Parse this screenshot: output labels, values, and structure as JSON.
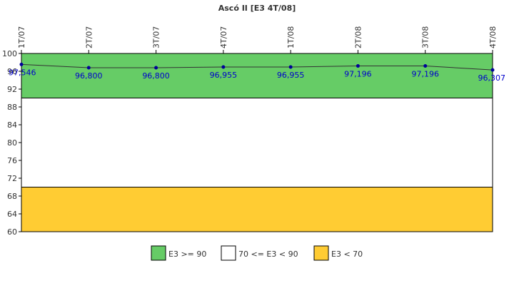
{
  "chart_data": {
    "type": "line",
    "title": "Ascó II [E3 4T/08]",
    "categories": [
      "1T/07",
      "2T/07",
      "3T/07",
      "4T/07",
      "1T/08",
      "2T/08",
      "3T/08",
      "4T/08"
    ],
    "values": [
      97.546,
      96.8,
      96.8,
      96.955,
      96.955,
      97.196,
      97.196,
      96.307
    ],
    "value_labels": [
      "97,546",
      "96,800",
      "96,800",
      "96,955",
      "96,955",
      "97,196",
      "97,196",
      "96,307"
    ],
    "ylim": [
      60,
      100
    ],
    "yticks": [
      60,
      64,
      68,
      72,
      76,
      80,
      84,
      88,
      92,
      96,
      100
    ],
    "grid": false,
    "line_color": "#333333",
    "marker_color": "#000099",
    "bands": [
      {
        "label": "E3 >= 90",
        "from": 90,
        "to": 100,
        "color": "#66cc66"
      },
      {
        "label": "70 <= E3 < 90",
        "from": 70,
        "to": 90,
        "color": "#ffffff"
      },
      {
        "label": "E3 < 70",
        "from": 60,
        "to": 70,
        "color": "#ffcc33"
      }
    ],
    "legend_position": "bottom"
  }
}
